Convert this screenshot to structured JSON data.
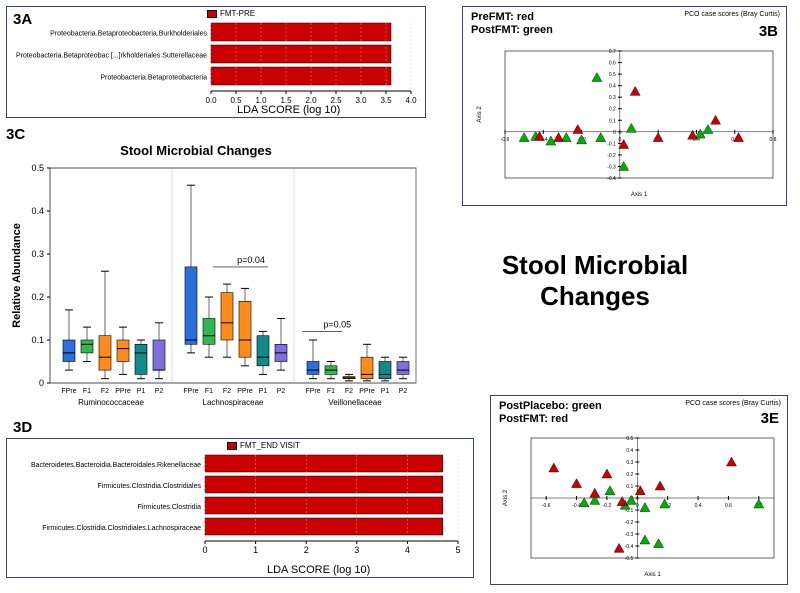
{
  "main_title": "Stool Microbial Changes",
  "panel3A": {
    "label": "3A",
    "legend": "FMT-PRE",
    "xlabel": "LDA SCORE (log 10)",
    "xlim": [
      0,
      4.0
    ],
    "xticks": [
      0.0,
      0.5,
      1.0,
      1.5,
      2.0,
      2.5,
      3.0,
      3.5,
      4.0
    ],
    "bar_color": "#cc0000",
    "items": [
      {
        "label": "Proteobacteria.Betaproteobacteria.Burkholderiales",
        "value": 3.6
      },
      {
        "label": "Proteobacteria.Betaproteobac [...]rkholderiales.Sutterellaceae",
        "value": 3.6
      },
      {
        "label": "Proteobacteria.Betaproteobacteria",
        "value": 3.6
      }
    ]
  },
  "panel3B": {
    "label": "3B",
    "title": "PCO case scores (Bray Curtis)",
    "axis_x_label": "Axis 1",
    "axis_y_label": "Axis 2",
    "xlim": [
      -0.6,
      0.8
    ],
    "xticks": [
      -0.6,
      -0.4,
      -0.2,
      0,
      0.2,
      0.4,
      0.6,
      0.8
    ],
    "ylim": [
      -0.4,
      0.7
    ],
    "yticks": [
      -0.4,
      -0.3,
      -0.2,
      -0.1,
      0,
      0.1,
      0.2,
      0.3,
      0.4,
      0.5,
      0.6,
      0.7
    ],
    "legend_lines": [
      {
        "text": "PreFMT: red",
        "color": "#cc0000"
      },
      {
        "text": "PostFMT: green",
        "color": "#00a000"
      }
    ],
    "red": "#cc0000",
    "green": "#00b000",
    "points_red": [
      [
        -0.32,
        -0.05
      ],
      [
        -0.22,
        0.02
      ],
      [
        0.02,
        -0.11
      ],
      [
        0.08,
        0.35
      ],
      [
        0.2,
        -0.05
      ],
      [
        0.38,
        -0.03
      ],
      [
        0.5,
        0.1
      ],
      [
        0.62,
        -0.05
      ],
      [
        -0.42,
        -0.04
      ]
    ],
    "points_green": [
      [
        -0.5,
        -0.05
      ],
      [
        -0.44,
        -0.04
      ],
      [
        -0.36,
        -0.08
      ],
      [
        -0.28,
        -0.05
      ],
      [
        -0.2,
        -0.07
      ],
      [
        -0.12,
        0.47
      ],
      [
        -0.1,
        -0.05
      ],
      [
        0.02,
        -0.3
      ],
      [
        0.06,
        0.03
      ],
      [
        0.42,
        -0.02
      ],
      [
        0.46,
        0.02
      ]
    ]
  },
  "panel3C": {
    "label": "3C",
    "title": "Stool Microbial Changes",
    "ylabel": "Relative Abundance",
    "ylim": [
      0,
      0.5
    ],
    "yticks": [
      0,
      0.1,
      0.2,
      0.3,
      0.4,
      0.5
    ],
    "families": [
      "Ruminococcaceae",
      "Lachnospiraceae",
      "Veillonellaceae"
    ],
    "conditions": [
      "FPre",
      "F1",
      "F2",
      "PPre",
      "P1",
      "P2"
    ],
    "colors": [
      "#2a6fdb",
      "#2fb84f",
      "#ff8c1a",
      "#ff8c1a",
      "#128a8a",
      "#7e6fe0"
    ],
    "annotations": [
      {
        "text": "p=0.04",
        "pos": "lachno"
      },
      {
        "text": "p=0.05",
        "pos": "veillo"
      }
    ],
    "boxes": [
      [
        [
          0.03,
          0.05,
          0.07,
          0.1,
          0.17
        ],
        [
          0.05,
          0.07,
          0.09,
          0.1,
          0.13
        ],
        [
          0.01,
          0.03,
          0.06,
          0.11,
          0.26
        ],
        [
          0.02,
          0.05,
          0.08,
          0.1,
          0.13
        ],
        [
          0.01,
          0.02,
          0.07,
          0.09,
          0.1
        ],
        [
          0.01,
          0.03,
          0.03,
          0.1,
          0.14
        ]
      ],
      [
        [
          0.07,
          0.09,
          0.1,
          0.27,
          0.46
        ],
        [
          0.06,
          0.09,
          0.11,
          0.15,
          0.2
        ],
        [
          0.06,
          0.1,
          0.14,
          0.21,
          0.23
        ],
        [
          0.04,
          0.06,
          0.1,
          0.19,
          0.22
        ],
        [
          0.02,
          0.04,
          0.06,
          0.11,
          0.12
        ],
        [
          0.03,
          0.05,
          0.07,
          0.09,
          0.15
        ]
      ],
      [
        [
          0.01,
          0.02,
          0.03,
          0.05,
          0.1
        ],
        [
          0.01,
          0.02,
          0.03,
          0.04,
          0.05
        ],
        [
          0.005,
          0.01,
          0.012,
          0.015,
          0.02
        ],
        [
          0.005,
          0.01,
          0.02,
          0.06,
          0.09
        ],
        [
          0.005,
          0.01,
          0.02,
          0.05,
          0.06
        ],
        [
          0.01,
          0.02,
          0.03,
          0.05,
          0.06
        ]
      ]
    ]
  },
  "panel3D": {
    "label": "3D",
    "legend": "FMT_END VISIT",
    "xlabel": "LDA SCORE (log 10)",
    "xlim": [
      0,
      5.0
    ],
    "xticks": [
      0,
      1,
      2,
      3,
      4,
      5
    ],
    "bar_color": "#cc0000",
    "items": [
      {
        "label": "Bacteroidetes.Bacteroidia.Bacteroidales.Rikenellaceae",
        "value": 4.7
      },
      {
        "label": "Firmicutes.Clostridia.Clostridiales",
        "value": 4.7
      },
      {
        "label": "Firmicutes.Clostridia",
        "value": 4.7
      },
      {
        "label": "Firmicutes.Clostridia.Clostridiales.Lachnospiraceae",
        "value": 4.7
      }
    ]
  },
  "panel3E": {
    "label": "3E",
    "title": "PCO case scores (Bray Curtis)",
    "axis_x_label": "Axis 1",
    "axis_y_label": "Axis 2",
    "xlim": [
      -0.7,
      0.9
    ],
    "xticks": [
      -0.6,
      -0.4,
      -0.2,
      0,
      0.2,
      0.4,
      0.6,
      0.8
    ],
    "ylim": [
      -0.5,
      0.5
    ],
    "yticks": [
      -0.5,
      -0.4,
      -0.3,
      -0.2,
      -0.1,
      0,
      0.1,
      0.2,
      0.3,
      0.4,
      0.5
    ],
    "legend_lines": [
      {
        "text": "PostPlacebo: green",
        "color": "#00a000"
      },
      {
        "text": "PostFMT: red",
        "color": "#cc0000"
      }
    ],
    "red": "#cc0000",
    "green": "#00b000",
    "points_red": [
      [
        -0.55,
        0.25
      ],
      [
        -0.4,
        0.12
      ],
      [
        -0.28,
        0.04
      ],
      [
        -0.2,
        0.2
      ],
      [
        -0.1,
        -0.03
      ],
      [
        -0.12,
        -0.42
      ],
      [
        0.02,
        0.06
      ],
      [
        0.15,
        0.1
      ],
      [
        0.62,
        0.3
      ]
    ],
    "points_green": [
      [
        -0.35,
        -0.04
      ],
      [
        -0.28,
        -0.02
      ],
      [
        -0.18,
        0.06
      ],
      [
        -0.08,
        -0.06
      ],
      [
        -0.04,
        -0.02
      ],
      [
        0.05,
        -0.08
      ],
      [
        0.05,
        -0.35
      ],
      [
        0.14,
        -0.38
      ],
      [
        0.18,
        -0.05
      ],
      [
        0.8,
        -0.05
      ]
    ]
  }
}
